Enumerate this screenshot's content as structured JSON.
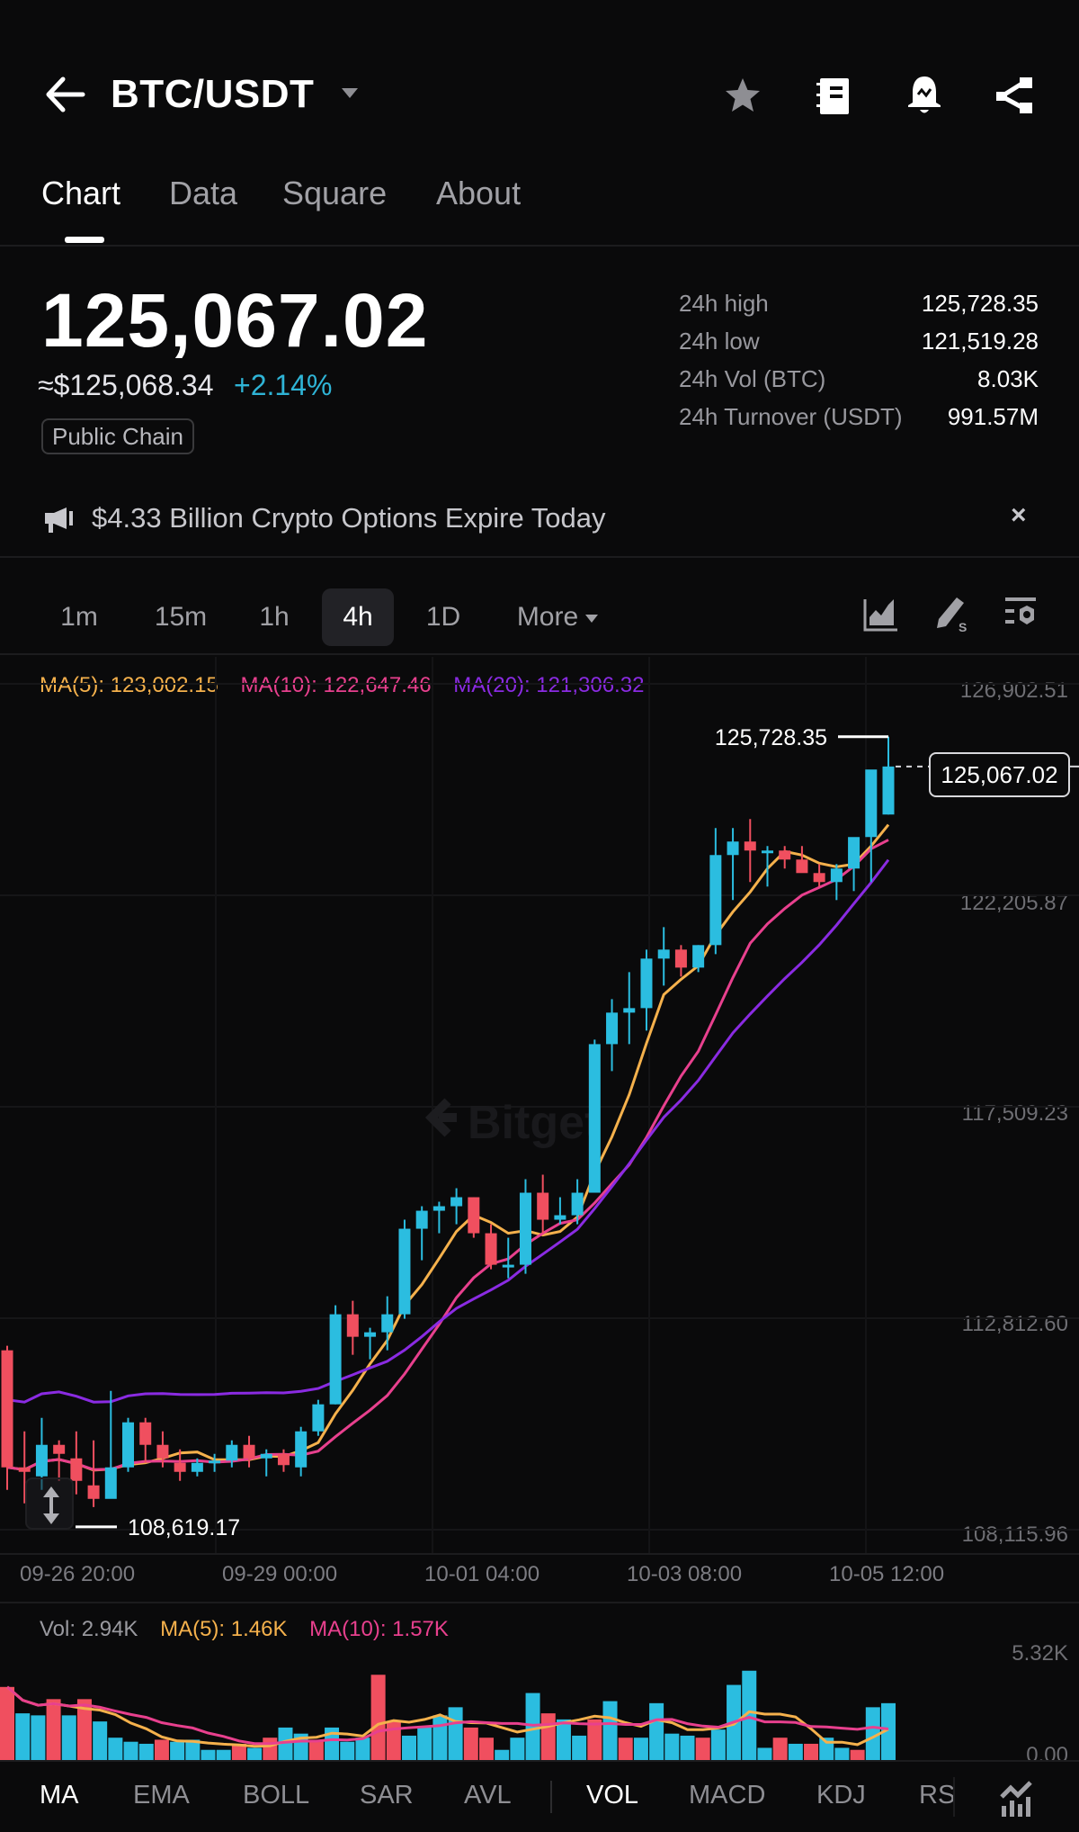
{
  "header": {
    "title": "BTC/USDT",
    "icons": [
      "back-arrow-icon",
      "star-icon",
      "notebook-icon",
      "price-alert-bell-icon",
      "share-icon"
    ]
  },
  "tabs": [
    {
      "label": "Chart",
      "active": true
    },
    {
      "label": "Data",
      "active": false
    },
    {
      "label": "Square",
      "active": false
    },
    {
      "label": "About",
      "active": false
    }
  ],
  "ticker": {
    "last_price": "125,067.02",
    "usd_equiv": "≈$125,068.34",
    "change_pct": "+2.14%",
    "tag": "Public Chain",
    "stats": [
      {
        "label": "24h high",
        "value": "125,728.35"
      },
      {
        "label": "24h low",
        "value": "121,519.28"
      },
      {
        "label": "24h Vol (BTC)",
        "value": "8.03K"
      },
      {
        "label": "24h Turnover (USDT)",
        "value": "991.57M"
      }
    ]
  },
  "notice": {
    "text": "$4.33 Billion Crypto Options Expire Today",
    "close": "×"
  },
  "intervals": {
    "items": [
      "1m",
      "15m",
      "1h",
      "4h",
      "1D"
    ],
    "active": "4h",
    "more_label": "More"
  },
  "ma_legend": {
    "ma5": "MA(5): 123,002.15",
    "ma10": "MA(10): 122,647.46",
    "ma20": "MA(20): 121,306.32"
  },
  "chart": {
    "y_labels": [
      "126,902.51",
      "122,205.87",
      "117,509.23",
      "112,812.60",
      "108,115.96"
    ],
    "x_labels": [
      "09-26 20:00",
      "09-29 00:00",
      "10-01 04:00",
      "10-03 08:00",
      "10-05 12:00"
    ],
    "high_marker": "125,728.35",
    "low_marker": "108,619.17",
    "current_price_tag": "125,067.02",
    "watermark": "Bitget"
  },
  "volume": {
    "vol": "Vol: 2.94K",
    "ma5": "MA(5): 1.46K",
    "ma10": "MA(10): 1.57K",
    "y_max": "5.32K",
    "y_min": "0.00"
  },
  "indicators": {
    "main": [
      "MA",
      "EMA",
      "BOLL",
      "SAR",
      "AVL"
    ],
    "sub": [
      "VOL",
      "MACD",
      "KDJ",
      "RS"
    ],
    "active_main": "MA",
    "active_sub": "VOL"
  },
  "colors": {
    "up": "#2bbde0",
    "down": "#f04f5f",
    "ma5": "#f5b14c",
    "ma10": "#e8408e",
    "ma20": "#8a2be2",
    "background": "#0a0a0b"
  },
  "chart_data": {
    "type": "candlestick",
    "title": "BTC/USDT 4h",
    "interval": "4h",
    "ylim": [
      108115.96,
      126902.51
    ],
    "y_ticks": [
      126902.51,
      122205.87,
      117509.23,
      112812.6,
      108115.96
    ],
    "x_ticks": [
      "09-26 20:00",
      "09-29 00:00",
      "10-01 04:00",
      "10-03 08:00",
      "10-05 12:00"
    ],
    "grid": true,
    "legend": [
      "MA(5): 123,002.15",
      "MA(10): 122,647.46",
      "MA(20): 121,306.32"
    ],
    "annotations": [
      {
        "label": "high",
        "value": 125728.35
      },
      {
        "label": "low",
        "value": 108619.17
      },
      {
        "label": "last",
        "value": 125067.02
      }
    ],
    "candles": [
      [
        112100,
        112200,
        109000,
        109500
      ],
      [
        109500,
        110300,
        108700,
        109400
      ],
      [
        109300,
        110600,
        109000,
        110000
      ],
      [
        110000,
        110100,
        109200,
        109800
      ],
      [
        109700,
        110300,
        108900,
        109200
      ],
      [
        109100,
        110100,
        108619.17,
        108800
      ],
      [
        108800,
        111200,
        108900,
        109500
      ],
      [
        109500,
        110600,
        109400,
        110500
      ],
      [
        110500,
        110600,
        109600,
        110000
      ],
      [
        110000,
        110300,
        109500,
        109700
      ],
      [
        109600,
        109900,
        109200,
        109400
      ],
      [
        109400,
        109700,
        109300,
        109600
      ],
      [
        109600,
        109800,
        109400,
        109650
      ],
      [
        109650,
        110100,
        109500,
        110000
      ],
      [
        110000,
        110200,
        109500,
        109700
      ],
      [
        109700,
        109900,
        109300,
        109800
      ],
      [
        109800,
        109900,
        109400,
        109550
      ],
      [
        109500,
        110400,
        109300,
        110300
      ],
      [
        110300,
        111000,
        110200,
        110900
      ],
      [
        110900,
        113100,
        110900,
        112900
      ],
      [
        112900,
        113200,
        112000,
        112400
      ],
      [
        112400,
        112600,
        111900,
        112500
      ],
      [
        112500,
        113300,
        112100,
        112900
      ],
      [
        112900,
        115000,
        112800,
        114800
      ],
      [
        114800,
        115300,
        114100,
        115200
      ],
      [
        115200,
        115400,
        114700,
        115300
      ],
      [
        115300,
        115700,
        114900,
        115500
      ],
      [
        115500,
        115500,
        114600,
        114700
      ],
      [
        114700,
        114900,
        113900,
        114000
      ],
      [
        114000,
        114600,
        113700,
        114000
      ],
      [
        114000,
        115900,
        113800,
        115600
      ],
      [
        115600,
        116000,
        114700,
        115000
      ],
      [
        115000,
        115500,
        114900,
        115100
      ],
      [
        115100,
        115900,
        114900,
        115600
      ],
      [
        115600,
        119000,
        115600,
        118900
      ],
      [
        118900,
        119900,
        118300,
        119600
      ],
      [
        119600,
        120500,
        118900,
        119700
      ],
      [
        119700,
        121000,
        119200,
        120800
      ],
      [
        120800,
        121500,
        120200,
        121000
      ],
      [
        121000,
        121100,
        120400,
        120600
      ],
      [
        120600,
        121100,
        120500,
        121100
      ],
      [
        121100,
        123700,
        120900,
        123100
      ],
      [
        123100,
        123700,
        122100,
        123400
      ],
      [
        123400,
        123900,
        122500,
        123200
      ],
      [
        123200,
        123300,
        122400,
        123200
      ],
      [
        123200,
        123300,
        122800,
        123000
      ],
      [
        123000,
        123300,
        122800,
        122700
      ],
      [
        122700,
        122900,
        122400,
        122500
      ],
      [
        122500,
        122900,
        122100,
        122800
      ],
      [
        122800,
        123400,
        122300,
        123500
      ],
      [
        123500,
        124700,
        122500,
        125000
      ],
      [
        124000,
        125728.35,
        124000,
        125067.02
      ]
    ],
    "volume_series": {
      "max": 5.32,
      "unit": "K",
      "last": 2.94,
      "ma5_last": 1.46,
      "ma10_last": 1.57
    }
  }
}
